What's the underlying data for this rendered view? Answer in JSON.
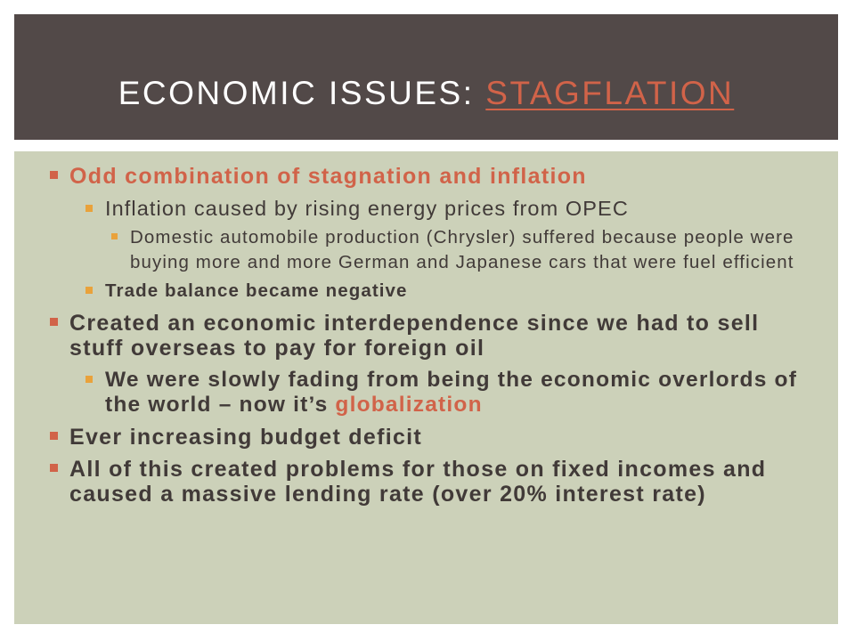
{
  "title": {
    "prefix": "ECONOMIC ISSUES: ",
    "link": "STAGFLATION"
  },
  "bullets": {
    "b1": "Odd combination of stagnation and inflation",
    "b1_1": "Inflation caused by rising energy prices from OPEC",
    "b1_1_1": "Domestic automobile production (Chrysler) suffered because people were buying more and more German and Japanese cars that were fuel efficient",
    "b1_2": "Trade balance became negative",
    "b2": "Created an economic interdependence since we had to sell stuff overseas to pay for foreign oil",
    "b2_1_text": "We were slowly fading from being the economic overlords of the world – now it’s ",
    "b2_1_accent": "globalization",
    "b3": "Ever increasing budget deficit",
    "b4": "All of this created problems for those on fixed incomes and caused a massive lending rate (over 20% interest rate)"
  },
  "colors": {
    "title_bar": "#524948",
    "content_bg": "#ccd1b9",
    "accent": "#d16349",
    "sub_bullet": "#e9a23b",
    "text": "#413a38"
  }
}
